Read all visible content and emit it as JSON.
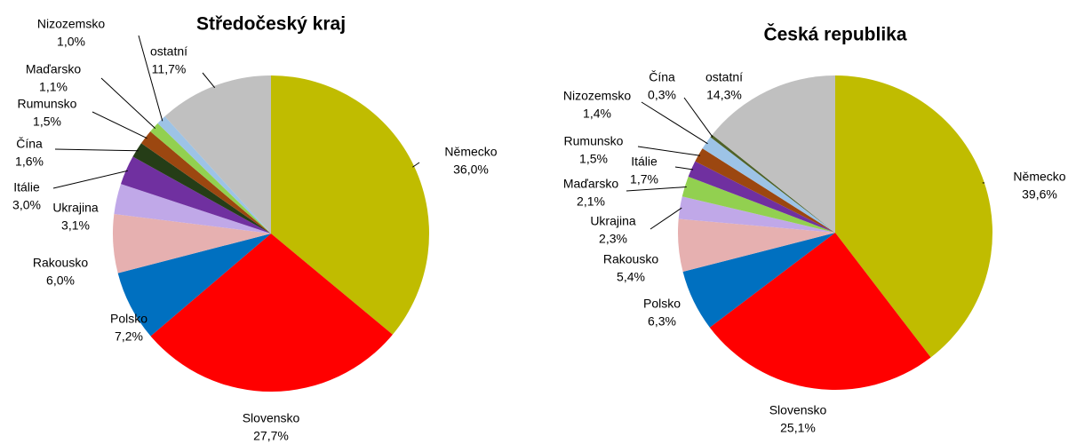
{
  "chart_data": [
    {
      "type": "pie",
      "title": "Středočeský kraj",
      "categories": [
        "Německo",
        "Slovensko",
        "Polsko",
        "Rakousko",
        "Ukrajina",
        "Itálie",
        "Čína",
        "Rumunsko",
        "Maďarsko",
        "Nizozemsko",
        "ostatní"
      ],
      "values": [
        36.0,
        27.7,
        7.2,
        6.0,
        3.1,
        3.0,
        1.6,
        1.5,
        1.1,
        1.0,
        11.7
      ],
      "value_labels": [
        "36,0%",
        "27,7%",
        "7,2%",
        "6,0%",
        "3,1%",
        "3,0%",
        "1,6%",
        "1,5%",
        "1,1%",
        "1,0%",
        "11,7%"
      ],
      "colors": [
        "#c0bc00",
        "#ff0000",
        "#0070c0",
        "#e6b0b0",
        "#c0a8e8",
        "#7030a0",
        "#253d17",
        "#9c4710",
        "#92d050",
        "#9dc3e6",
        "#c0c0c0"
      ]
    },
    {
      "type": "pie",
      "title": "Česká republika",
      "categories": [
        "Německo",
        "Slovensko",
        "Polsko",
        "Rakousko",
        "Ukrajina",
        "Maďarsko",
        "Itálie",
        "Rumunsko",
        "Nizozemsko",
        "Čína",
        "ostatní"
      ],
      "values": [
        39.6,
        25.1,
        6.3,
        5.4,
        2.3,
        2.1,
        1.7,
        1.5,
        1.4,
        0.3,
        14.3
      ],
      "value_labels": [
        "39,6%",
        "25,1%",
        "6,3%",
        "5,4%",
        "2,3%",
        "2,1%",
        "1,7%",
        "1,5%",
        "1,4%",
        "0,3%",
        "14,3%"
      ],
      "colors": [
        "#c0bc00",
        "#ff0000",
        "#0070c0",
        "#e6b0b0",
        "#c0a8e8",
        "#92d050",
        "#7030a0",
        "#9c4710",
        "#9dc3e6",
        "#4f6228",
        "#c0c0c0"
      ]
    }
  ]
}
